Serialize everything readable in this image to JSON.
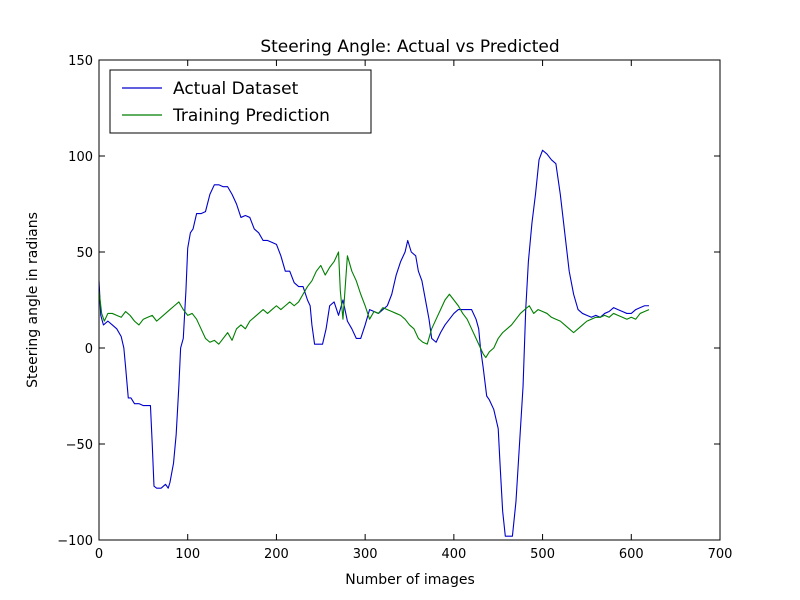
{
  "chart_data": {
    "type": "line",
    "title": "Steering Angle: Actual vs Predicted",
    "xlabel": "Number of images",
    "ylabel": "Steering angle in radians",
    "xlim": [
      0,
      700
    ],
    "ylim": [
      -100,
      150
    ],
    "xticks": [
      0,
      100,
      200,
      300,
      400,
      500,
      600,
      700
    ],
    "yticks": [
      -100,
      -50,
      0,
      50,
      100,
      150
    ],
    "tick_labels_x": [
      "0",
      "100",
      "200",
      "300",
      "400",
      "500",
      "600",
      "700"
    ],
    "tick_labels_y": [
      "−100",
      "−50",
      "0",
      "50",
      "100",
      "150"
    ],
    "grid": false,
    "legend_position": "top-left",
    "series": [
      {
        "name": "Actual Dataset",
        "color": "#0000cc",
        "points": [
          [
            0,
            35
          ],
          [
            2,
            17
          ],
          [
            5,
            12
          ],
          [
            10,
            14
          ],
          [
            15,
            12
          ],
          [
            20,
            10
          ],
          [
            25,
            6
          ],
          [
            28,
            0
          ],
          [
            30,
            -10
          ],
          [
            33,
            -26
          ],
          [
            36,
            -26
          ],
          [
            40,
            -29
          ],
          [
            45,
            -29
          ],
          [
            50,
            -30
          ],
          [
            55,
            -30
          ],
          [
            58,
            -30
          ],
          [
            60,
            -50
          ],
          [
            62,
            -72
          ],
          [
            65,
            -73
          ],
          [
            70,
            -73
          ],
          [
            75,
            -71
          ],
          [
            78,
            -73
          ],
          [
            80,
            -70
          ],
          [
            84,
            -60
          ],
          [
            87,
            -45
          ],
          [
            90,
            -20
          ],
          [
            92,
            0
          ],
          [
            95,
            5
          ],
          [
            98,
            30
          ],
          [
            100,
            52
          ],
          [
            103,
            60
          ],
          [
            106,
            62
          ],
          [
            110,
            70
          ],
          [
            115,
            70
          ],
          [
            120,
            71
          ],
          [
            125,
            80
          ],
          [
            130,
            85
          ],
          [
            135,
            85
          ],
          [
            140,
            84
          ],
          [
            145,
            84
          ],
          [
            150,
            80
          ],
          [
            155,
            75
          ],
          [
            160,
            68
          ],
          [
            165,
            69
          ],
          [
            170,
            68
          ],
          [
            175,
            62
          ],
          [
            180,
            60
          ],
          [
            185,
            56
          ],
          [
            190,
            56
          ],
          [
            195,
            55
          ],
          [
            200,
            54
          ],
          [
            205,
            48
          ],
          [
            210,
            40
          ],
          [
            215,
            40
          ],
          [
            220,
            34
          ],
          [
            225,
            32
          ],
          [
            230,
            32
          ],
          [
            235,
            25
          ],
          [
            238,
            22
          ],
          [
            240,
            12
          ],
          [
            243,
            2
          ],
          [
            248,
            2
          ],
          [
            252,
            2
          ],
          [
            256,
            10
          ],
          [
            260,
            22
          ],
          [
            265,
            24
          ],
          [
            270,
            17
          ],
          [
            275,
            25
          ],
          [
            280,
            14
          ],
          [
            285,
            10
          ],
          [
            290,
            5
          ],
          [
            295,
            5
          ],
          [
            300,
            12
          ],
          [
            305,
            20
          ],
          [
            310,
            19
          ],
          [
            315,
            18
          ],
          [
            320,
            20
          ],
          [
            325,
            22
          ],
          [
            330,
            28
          ],
          [
            335,
            38
          ],
          [
            340,
            45
          ],
          [
            345,
            50
          ],
          [
            348,
            56
          ],
          [
            352,
            50
          ],
          [
            357,
            48
          ],
          [
            360,
            40
          ],
          [
            364,
            35
          ],
          [
            368,
            25
          ],
          [
            372,
            15
          ],
          [
            375,
            5
          ],
          [
            380,
            3
          ],
          [
            385,
            8
          ],
          [
            390,
            12
          ],
          [
            395,
            15
          ],
          [
            400,
            18
          ],
          [
            405,
            20
          ],
          [
            410,
            20
          ],
          [
            415,
            20
          ],
          [
            420,
            20
          ],
          [
            425,
            15
          ],
          [
            428,
            10
          ],
          [
            430,
            0
          ],
          [
            433,
            -10
          ],
          [
            437,
            -25
          ],
          [
            440,
            -27
          ],
          [
            445,
            -32
          ],
          [
            450,
            -42
          ],
          [
            452,
            -60
          ],
          [
            455,
            -85
          ],
          [
            458,
            -98
          ],
          [
            462,
            -98
          ],
          [
            466,
            -98
          ],
          [
            470,
            -80
          ],
          [
            474,
            -50
          ],
          [
            478,
            -20
          ],
          [
            481,
            20
          ],
          [
            484,
            45
          ],
          [
            488,
            65
          ],
          [
            492,
            80
          ],
          [
            496,
            98
          ],
          [
            500,
            103
          ],
          [
            505,
            101
          ],
          [
            510,
            98
          ],
          [
            515,
            96
          ],
          [
            520,
            80
          ],
          [
            525,
            60
          ],
          [
            530,
            40
          ],
          [
            535,
            28
          ],
          [
            540,
            20
          ],
          [
            545,
            18
          ],
          [
            550,
            17
          ],
          [
            555,
            16
          ],
          [
            560,
            17
          ],
          [
            565,
            16
          ],
          [
            570,
            18
          ],
          [
            575,
            19
          ],
          [
            580,
            21
          ],
          [
            585,
            20
          ],
          [
            590,
            19
          ],
          [
            595,
            18
          ],
          [
            600,
            18
          ],
          [
            605,
            20
          ],
          [
            610,
            21
          ],
          [
            615,
            22
          ],
          [
            620,
            22
          ]
        ]
      },
      {
        "name": "Training Prediction",
        "color": "#007f00",
        "points": [
          [
            0,
            30
          ],
          [
            3,
            18
          ],
          [
            6,
            14
          ],
          [
            10,
            18
          ],
          [
            15,
            18
          ],
          [
            20,
            17
          ],
          [
            25,
            16
          ],
          [
            30,
            19
          ],
          [
            35,
            17
          ],
          [
            40,
            14
          ],
          [
            45,
            12
          ],
          [
            50,
            15
          ],
          [
            55,
            16
          ],
          [
            60,
            17
          ],
          [
            65,
            14
          ],
          [
            70,
            16
          ],
          [
            75,
            18
          ],
          [
            80,
            20
          ],
          [
            85,
            22
          ],
          [
            90,
            24
          ],
          [
            95,
            20
          ],
          [
            100,
            17
          ],
          [
            105,
            18
          ],
          [
            110,
            15
          ],
          [
            115,
            10
          ],
          [
            120,
            5
          ],
          [
            125,
            3
          ],
          [
            130,
            4
          ],
          [
            135,
            2
          ],
          [
            140,
            5
          ],
          [
            145,
            8
          ],
          [
            150,
            4
          ],
          [
            155,
            10
          ],
          [
            160,
            12
          ],
          [
            165,
            10
          ],
          [
            170,
            14
          ],
          [
            175,
            16
          ],
          [
            180,
            18
          ],
          [
            185,
            20
          ],
          [
            190,
            18
          ],
          [
            195,
            20
          ],
          [
            200,
            22
          ],
          [
            205,
            20
          ],
          [
            210,
            22
          ],
          [
            215,
            24
          ],
          [
            220,
            22
          ],
          [
            225,
            24
          ],
          [
            230,
            28
          ],
          [
            235,
            32
          ],
          [
            240,
            35
          ],
          [
            245,
            40
          ],
          [
            250,
            43
          ],
          [
            255,
            38
          ],
          [
            260,
            42
          ],
          [
            265,
            45
          ],
          [
            270,
            50
          ],
          [
            272,
            30
          ],
          [
            275,
            15
          ],
          [
            280,
            48
          ],
          [
            285,
            40
          ],
          [
            290,
            35
          ],
          [
            295,
            28
          ],
          [
            300,
            22
          ],
          [
            305,
            15
          ],
          [
            310,
            19
          ],
          [
            315,
            18
          ],
          [
            320,
            21
          ],
          [
            325,
            20
          ],
          [
            330,
            19
          ],
          [
            335,
            18
          ],
          [
            340,
            17
          ],
          [
            345,
            15
          ],
          [
            350,
            12
          ],
          [
            355,
            10
          ],
          [
            360,
            5
          ],
          [
            365,
            3
          ],
          [
            370,
            2
          ],
          [
            375,
            10
          ],
          [
            380,
            15
          ],
          [
            385,
            20
          ],
          [
            390,
            25
          ],
          [
            395,
            28
          ],
          [
            400,
            25
          ],
          [
            405,
            22
          ],
          [
            410,
            18
          ],
          [
            415,
            15
          ],
          [
            420,
            10
          ],
          [
            425,
            5
          ],
          [
            430,
            0
          ],
          [
            433,
            -3
          ],
          [
            436,
            -5
          ],
          [
            440,
            -2
          ],
          [
            445,
            0
          ],
          [
            450,
            5
          ],
          [
            455,
            8
          ],
          [
            460,
            10
          ],
          [
            465,
            12
          ],
          [
            470,
            15
          ],
          [
            475,
            18
          ],
          [
            480,
            20
          ],
          [
            485,
            22
          ],
          [
            490,
            18
          ],
          [
            495,
            20
          ],
          [
            500,
            19
          ],
          [
            505,
            18
          ],
          [
            510,
            16
          ],
          [
            515,
            15
          ],
          [
            520,
            14
          ],
          [
            525,
            12
          ],
          [
            530,
            10
          ],
          [
            535,
            8
          ],
          [
            540,
            10
          ],
          [
            545,
            12
          ],
          [
            550,
            14
          ],
          [
            555,
            15
          ],
          [
            560,
            16
          ],
          [
            565,
            16
          ],
          [
            570,
            17
          ],
          [
            575,
            16
          ],
          [
            580,
            18
          ],
          [
            585,
            17
          ],
          [
            590,
            16
          ],
          [
            595,
            15
          ],
          [
            600,
            16
          ],
          [
            605,
            15
          ],
          [
            610,
            18
          ],
          [
            615,
            19
          ],
          [
            620,
            20
          ]
        ]
      }
    ]
  }
}
